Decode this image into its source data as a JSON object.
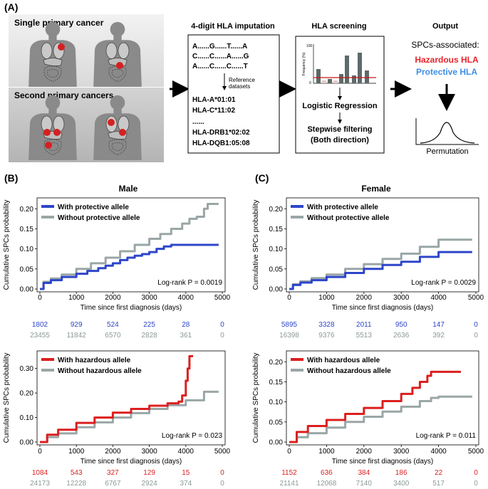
{
  "panelA": {
    "label": "(A)",
    "single_title": "Single primary cancer",
    "second_title": "Second primary cancers",
    "imputation": {
      "title": "4-digit HLA imputation",
      "seq_lines": [
        "A......G......T......A",
        "C......C......A......G",
        "A......C......C......T"
      ],
      "ref_label_1": "Reference",
      "ref_label_2": "datasets",
      "alleles": [
        "HLA-A*01:01",
        "HLA-C*11:02",
        "......",
        "HLA-DRB1*02:02",
        "HLA-DQB1:05:08"
      ]
    },
    "screening": {
      "title": "HLA screening",
      "ylabel": "Frequency (%)",
      "ytick_top": "100",
      "ytick_bottom": "0",
      "step1": "Logistic Regression",
      "step2": "Stepwise filtering",
      "step3": "(Both direction)"
    },
    "output": {
      "title": "Output",
      "line1": "SPCs-associated:",
      "hazardous": "Hazardous HLA",
      "protective": "Protective HLA",
      "perm": "Permutation"
    }
  },
  "colors": {
    "blue": "#2d46c9",
    "red": "#dc1f1f",
    "gray": "#9aa6a6",
    "hazard_text": "#e8242a",
    "protect_text": "#3f8ee6"
  },
  "chart_data": [
    {
      "id": "male_protective",
      "type": "line",
      "panel_label": "(B)",
      "title": "Male",
      "xlabel": "Time since first diagnosis (days)",
      "ylabel": "Cumulative SPCs probability",
      "xlim": [
        0,
        5000
      ],
      "ylim": [
        0,
        0.22
      ],
      "xticks": [
        "0",
        "1000",
        "2000",
        "3000",
        "4000",
        "5000"
      ],
      "yticks": [
        "0.00",
        "0.05",
        "0.10",
        "0.15",
        "0.20"
      ],
      "yvals": [
        0,
        0.05,
        0.1,
        0.15,
        0.2
      ],
      "legend": [
        "With protective allele",
        "Without protective allele"
      ],
      "series": [
        {
          "name": "With protective allele",
          "color": "blue",
          "x": [
            0,
            100,
            300,
            600,
            1000,
            1300,
            1600,
            1800,
            2000,
            2200,
            2400,
            2600,
            2800,
            3000,
            3200,
            3400,
            3600,
            3800,
            4000,
            4900
          ],
          "y": [
            0,
            0.015,
            0.022,
            0.03,
            0.038,
            0.045,
            0.052,
            0.058,
            0.064,
            0.072,
            0.078,
            0.083,
            0.087,
            0.092,
            0.1,
            0.106,
            0.11,
            0.11,
            0.11,
            0.11
          ]
        },
        {
          "name": "Without protective allele",
          "color": "gray",
          "x": [
            0,
            100,
            300,
            600,
            1000,
            1400,
            1800,
            2200,
            2600,
            3000,
            3300,
            3600,
            3900,
            4100,
            4300,
            4500,
            4600,
            4900
          ],
          "y": [
            0,
            0.018,
            0.026,
            0.036,
            0.05,
            0.064,
            0.078,
            0.094,
            0.11,
            0.125,
            0.137,
            0.15,
            0.163,
            0.175,
            0.18,
            0.2,
            0.212,
            0.212
          ]
        }
      ],
      "pvalue": "Log-rank P = 0.0019",
      "risk": {
        "top": [
          "1802",
          "929",
          "524",
          "225",
          "28",
          "0"
        ],
        "bottom": [
          "23455",
          "11842",
          "6570",
          "2828",
          "361",
          "0"
        ]
      }
    },
    {
      "id": "male_hazardous",
      "type": "line",
      "panel_label": "",
      "title": "",
      "xlabel": "Time since first diagnosis (days)",
      "ylabel": "Cumulative SPCs probability",
      "xlim": [
        0,
        5000
      ],
      "ylim": [
        0,
        0.36
      ],
      "xticks": [
        "0",
        "1000",
        "2000",
        "3000",
        "4000",
        "5000"
      ],
      "yticks": [
        "0.00",
        "0.10",
        "0.20",
        "0.30"
      ],
      "yvals": [
        0,
        0.1,
        0.2,
        0.3
      ],
      "legend": [
        "With hazardous allele",
        "Without hazardous allele"
      ],
      "series": [
        {
          "name": "With hazardous allele",
          "color": "red",
          "x": [
            0,
            200,
            500,
            1000,
            1500,
            2000,
            2500,
            3000,
            3500,
            3800,
            3900,
            4000,
            4050,
            4100,
            4200
          ],
          "y": [
            0,
            0.03,
            0.05,
            0.078,
            0.1,
            0.12,
            0.135,
            0.148,
            0.158,
            0.165,
            0.19,
            0.25,
            0.3,
            0.35,
            0.35
          ]
        },
        {
          "name": "Without hazardous allele",
          "color": "gray",
          "x": [
            0,
            200,
            500,
            1000,
            1500,
            2000,
            2500,
            3000,
            3500,
            4000,
            4500,
            4900
          ],
          "y": [
            0,
            0.02,
            0.035,
            0.06,
            0.08,
            0.1,
            0.118,
            0.135,
            0.15,
            0.17,
            0.205,
            0.205
          ]
        }
      ],
      "pvalue": "Log-rank P = 0.023",
      "risk": {
        "top": [
          "1084",
          "543",
          "327",
          "129",
          "15",
          "0"
        ],
        "bottom": [
          "24173",
          "12228",
          "6767",
          "2924",
          "374",
          "0"
        ]
      }
    },
    {
      "id": "female_protective",
      "type": "line",
      "panel_label": "(C)",
      "title": "Female",
      "xlabel": "Time since first diagnosis (days)",
      "ylabel": "Cumulative SPCs probability",
      "xlim": [
        0,
        5000
      ],
      "ylim": [
        0,
        0.22
      ],
      "xticks": [
        "0",
        "1000",
        "2000",
        "3000",
        "4000",
        "5000"
      ],
      "yticks": [
        "0.00",
        "0.05",
        "0.10",
        "0.15",
        "0.20"
      ],
      "yvals": [
        0,
        0.05,
        0.1,
        0.15,
        0.2
      ],
      "legend": [
        "With protective allele",
        "Without protective allele"
      ],
      "series": [
        {
          "name": "With protective allele",
          "color": "blue",
          "x": [
            0,
            100,
            300,
            600,
            1000,
            1500,
            2000,
            2500,
            3000,
            3500,
            4000,
            4900
          ],
          "y": [
            0,
            0.01,
            0.016,
            0.022,
            0.03,
            0.04,
            0.05,
            0.06,
            0.068,
            0.08,
            0.092,
            0.092
          ]
        },
        {
          "name": "Without protective allele",
          "color": "gray",
          "x": [
            0,
            100,
            300,
            600,
            1000,
            1500,
            2000,
            2500,
            3000,
            3500,
            4000,
            4900
          ],
          "y": [
            0,
            0.012,
            0.019,
            0.027,
            0.036,
            0.05,
            0.062,
            0.075,
            0.088,
            0.105,
            0.123,
            0.123
          ]
        }
      ],
      "pvalue": "Log-rank P = 0.0029",
      "risk": {
        "top": [
          "5895",
          "3328",
          "2011",
          "950",
          "147",
          "0"
        ],
        "bottom": [
          "16398",
          "9376",
          "5513",
          "2636",
          "392",
          "0"
        ]
      }
    },
    {
      "id": "female_hazardous",
      "type": "line",
      "panel_label": "",
      "title": "",
      "xlabel": "Time since first diagnosis (days)",
      "ylabel": "Cumulative SPCs probability",
      "xlim": [
        0,
        5000
      ],
      "ylim": [
        0,
        0.22
      ],
      "xticks": [
        "0",
        "1000",
        "2000",
        "3000",
        "4000",
        "5000"
      ],
      "yticks": [
        "0.00",
        "0.05",
        "0.10",
        "0.15",
        "0.20"
      ],
      "yvals": [
        0,
        0.05,
        0.1,
        0.15,
        0.2
      ],
      "legend": [
        "With hazardous allele",
        "Without hazardous allele"
      ],
      "series": [
        {
          "name": "With hazardous allele",
          "color": "red",
          "x": [
            0,
            200,
            500,
            1000,
            1500,
            2000,
            2500,
            3000,
            3300,
            3500,
            3700,
            3800,
            4600
          ],
          "y": [
            0,
            0.025,
            0.04,
            0.055,
            0.07,
            0.085,
            0.102,
            0.12,
            0.135,
            0.15,
            0.165,
            0.175,
            0.175
          ]
        },
        {
          "name": "Without hazardous allele",
          "color": "gray",
          "x": [
            0,
            200,
            500,
            1000,
            1500,
            2000,
            2500,
            3000,
            3500,
            3800,
            4000,
            4900
          ],
          "y": [
            0,
            0.012,
            0.022,
            0.036,
            0.05,
            0.063,
            0.076,
            0.088,
            0.102,
            0.11,
            0.113,
            0.113
          ]
        }
      ],
      "pvalue": "Log-rank P = 0.011",
      "risk": {
        "top": [
          "1152",
          "636",
          "384",
          "186",
          "22",
          "0"
        ],
        "bottom": [
          "21141",
          "12068",
          "7140",
          "3400",
          "517",
          "0"
        ]
      }
    }
  ]
}
